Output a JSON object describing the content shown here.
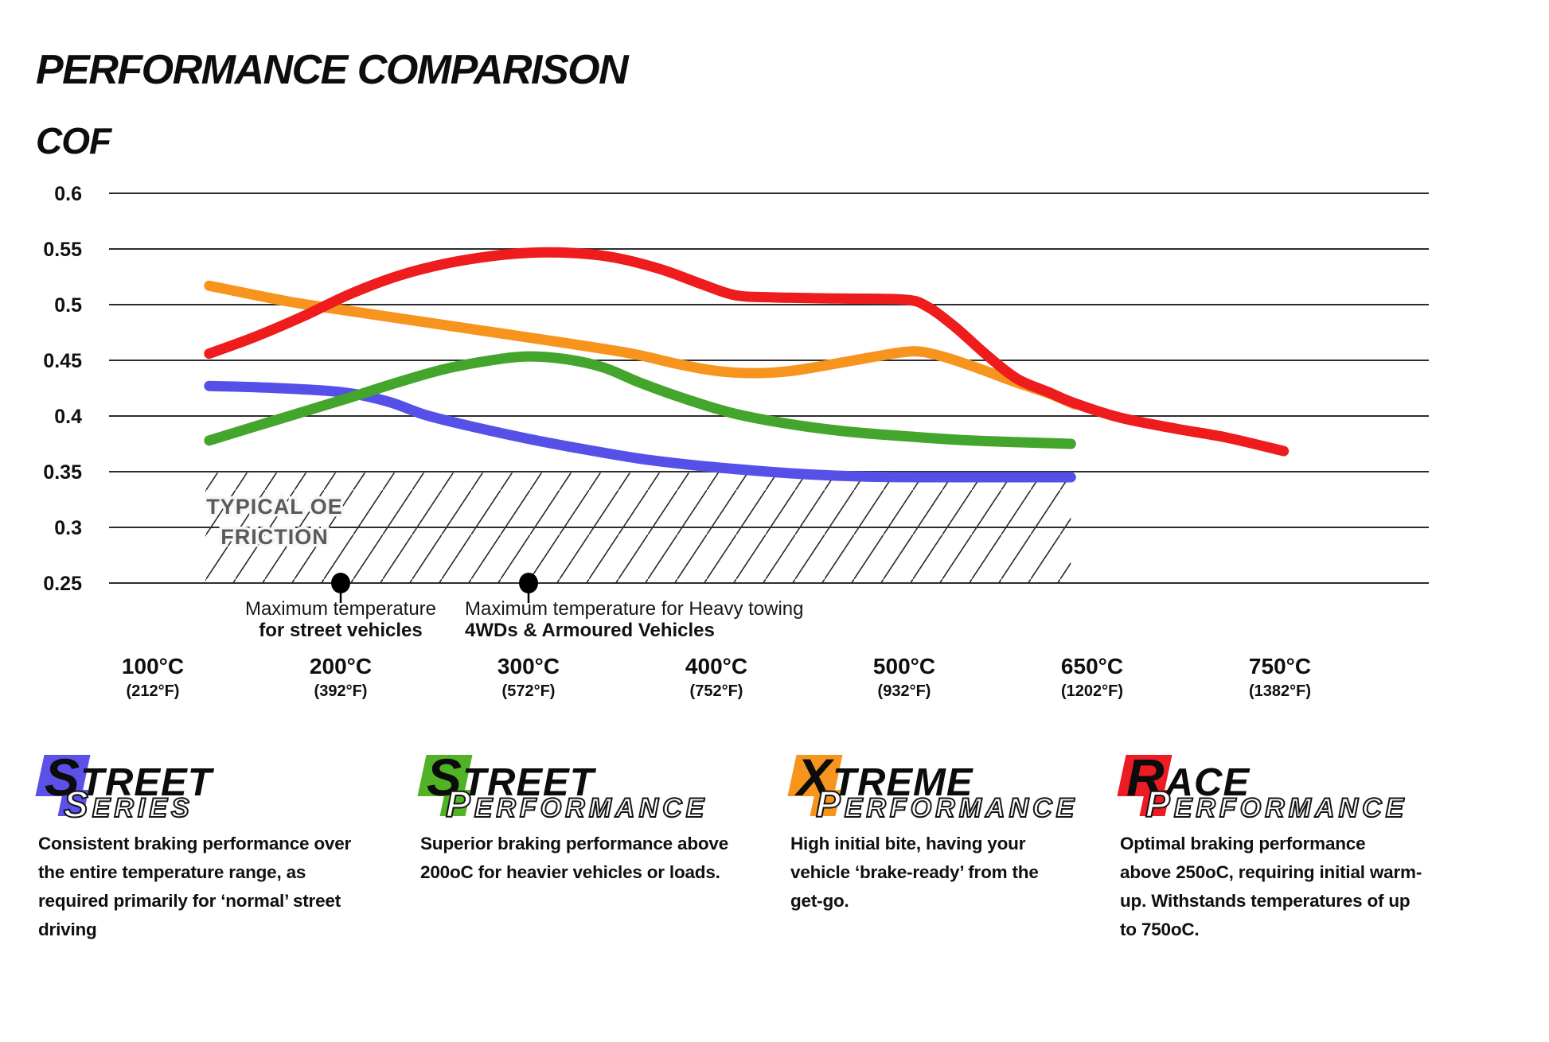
{
  "header": {
    "title": "PERFORMANCE COMPARISON",
    "ylabel": "COF"
  },
  "chart_data": {
    "type": "line",
    "title": "PERFORMANCE COMPARISON",
    "ylabel": "COF",
    "grid": true,
    "ylim": [
      0.25,
      0.6
    ],
    "y_ticks": [
      "0.6",
      "0.55",
      "0.5",
      "0.45",
      "0.4",
      "0.35",
      "0.3",
      "0.25"
    ],
    "y_tick_values": [
      0.6,
      0.55,
      0.5,
      0.45,
      0.4,
      0.35,
      0.3,
      0.25
    ],
    "x_axis_note": "categorical temperature axis, equal spacing between ticks",
    "x_ticks": [
      {
        "t": 100,
        "c_label": "100°C",
        "f_label": "(212°F)"
      },
      {
        "t": 200,
        "c_label": "200°C",
        "f_label": "(392°F)"
      },
      {
        "t": 300,
        "c_label": "300°C",
        "f_label": "(572°F)"
      },
      {
        "t": 400,
        "c_label": "400°C",
        "f_label": "(752°F)"
      },
      {
        "t": 500,
        "c_label": "500°C",
        "f_label": "(932°F)"
      },
      {
        "t": 650,
        "c_label": "650°C",
        "f_label": "(1202°F)"
      },
      {
        "t": 750,
        "c_label": "750°C",
        "f_label": "(1382°F)"
      }
    ],
    "series": [
      {
        "name": "Street Series",
        "color": "#5551e8",
        "points": [
          [
            130,
            0.427
          ],
          [
            160,
            0.4255
          ],
          [
            200,
            0.4215
          ],
          [
            225,
            0.413
          ],
          [
            245,
            0.401
          ],
          [
            270,
            0.3905
          ],
          [
            300,
            0.3795
          ],
          [
            330,
            0.37
          ],
          [
            360,
            0.3615
          ],
          [
            390,
            0.3555
          ],
          [
            420,
            0.351
          ],
          [
            450,
            0.3475
          ],
          [
            480,
            0.3455
          ],
          [
            520,
            0.345
          ],
          [
            570,
            0.345
          ],
          [
            633,
            0.345
          ]
        ]
      },
      {
        "name": "Street Performance",
        "color": "#43a52b",
        "points": [
          [
            130,
            0.378
          ],
          [
            160,
            0.3935
          ],
          [
            200,
            0.414
          ],
          [
            230,
            0.43
          ],
          [
            255,
            0.442
          ],
          [
            280,
            0.45
          ],
          [
            300,
            0.4535
          ],
          [
            320,
            0.451
          ],
          [
            340,
            0.4435
          ],
          [
            360,
            0.4295
          ],
          [
            385,
            0.4145
          ],
          [
            410,
            0.402
          ],
          [
            440,
            0.3925
          ],
          [
            470,
            0.386
          ],
          [
            505,
            0.3815
          ],
          [
            545,
            0.3785
          ],
          [
            590,
            0.3765
          ],
          [
            633,
            0.375
          ]
        ]
      },
      {
        "name": "Xtreme Performance",
        "color": "#f7941d",
        "points": [
          [
            130,
            0.517
          ],
          [
            170,
            0.5035
          ],
          [
            200,
            0.4955
          ],
          [
            240,
            0.4855
          ],
          [
            280,
            0.4755
          ],
          [
            320,
            0.4655
          ],
          [
            355,
            0.456
          ],
          [
            380,
            0.4465
          ],
          [
            400,
            0.4405
          ],
          [
            420,
            0.4385
          ],
          [
            440,
            0.4405
          ],
          [
            465,
            0.4475
          ],
          [
            485,
            0.4535
          ],
          [
            500,
            0.4575
          ],
          [
            515,
            0.4575
          ],
          [
            535,
            0.452
          ],
          [
            560,
            0.4425
          ],
          [
            590,
            0.43
          ],
          [
            615,
            0.4205
          ],
          [
            636,
            0.4105
          ]
        ]
      },
      {
        "name": "Race Performance",
        "color": "#ee1c1c",
        "points": [
          [
            130,
            0.456
          ],
          [
            155,
            0.4715
          ],
          [
            180,
            0.4895
          ],
          [
            205,
            0.5095
          ],
          [
            230,
            0.5255
          ],
          [
            255,
            0.5365
          ],
          [
            280,
            0.5435
          ],
          [
            300,
            0.5465
          ],
          [
            322,
            0.5465
          ],
          [
            345,
            0.5425
          ],
          [
            370,
            0.532
          ],
          [
            392,
            0.5185
          ],
          [
            410,
            0.5085
          ],
          [
            430,
            0.5065
          ],
          [
            465,
            0.5055
          ],
          [
            500,
            0.5045
          ],
          [
            518,
            0.4985
          ],
          [
            540,
            0.4805
          ],
          [
            565,
            0.4555
          ],
          [
            590,
            0.4335
          ],
          [
            615,
            0.4215
          ],
          [
            636,
            0.4115
          ],
          [
            665,
            0.3985
          ],
          [
            695,
            0.3885
          ],
          [
            722,
            0.3805
          ],
          [
            752,
            0.3685
          ]
        ]
      }
    ],
    "oe_band": {
      "label_lines": [
        "TYPICAL OE",
        "FRICTION"
      ],
      "cof_from": 0.25,
      "cof_to": 0.349,
      "t_from": 128,
      "t_to": 633,
      "label_color": "#5a5a5a"
    },
    "annotations": [
      {
        "t": 200,
        "cof": 0.25,
        "line1": "Maximum temperature",
        "line2": "for street vehicles",
        "anchor": "middle",
        "dx": 0
      },
      {
        "t": 300,
        "cof": 0.25,
        "line1": "Maximum temperature for Heavy towing",
        "line2": "4WDs & Armoured Vehicles",
        "anchor": "start",
        "dx": -80
      }
    ],
    "grid_color": "#2d2d2d",
    "hatch_color": "#2b2b2b"
  },
  "brands": [
    {
      "word1_first": "S",
      "word1_rest": "TREET",
      "word2_first": "S",
      "word2_rest": "ERIES",
      "badge_color": "#5b51e8",
      "desc_lines": [
        "Consistent braking performance over",
        "the entire temperature range, as",
        "required primarily for ‘normal’ street",
        "driving"
      ]
    },
    {
      "word1_first": "S",
      "word1_rest": "TREET",
      "word2_first": "P",
      "word2_rest": "ERFORMANCE",
      "badge_color": "#52b226",
      "desc_lines": [
        "Superior braking performance above",
        "200oC for heavier vehicles or loads."
      ]
    },
    {
      "word1_first": "X",
      "word1_rest": "TREME",
      "word2_first": "P",
      "word2_rest": "ERFORMANCE",
      "badge_color": "#f7941d",
      "desc_lines": [
        "High initial bite, having your",
        "vehicle ‘brake-ready’ from the",
        "get-go."
      ]
    },
    {
      "word1_first": "R",
      "word1_rest": "ACE",
      "word2_first": "P",
      "word2_rest": "ERFORMANCE",
      "badge_color": "#ed1c24",
      "desc_lines": [
        "Optimal braking performance",
        "above 250oC, requiring initial warm-",
        "up. Withstands temperatures of up",
        "to 750oC."
      ]
    }
  ]
}
